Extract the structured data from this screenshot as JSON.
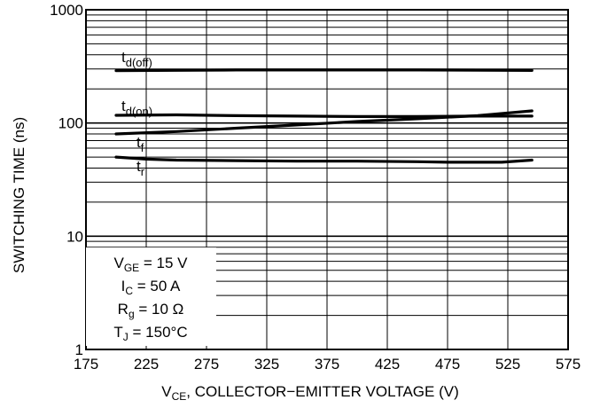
{
  "chart_data": {
    "type": "line",
    "xlabel": {
      "main": "V",
      "sub": "CE",
      "rest": ", COLLECTOR−EMITTER VOLTAGE (V)"
    },
    "ylabel": "SWITCHING TIME (ns)",
    "x_scale": "linear",
    "y_scale": "log",
    "xlim": [
      175,
      575
    ],
    "ylim": [
      1,
      1000
    ],
    "x_ticks": [
      "175",
      "225",
      "275",
      "325",
      "375",
      "425",
      "475",
      "525",
      "575"
    ],
    "y_ticks": [
      "1",
      "10",
      "100",
      "1000"
    ],
    "grid": true,
    "series": [
      {
        "label_main": "t",
        "label_sub": "d(off)",
        "x": [
          200,
          250,
          300,
          350,
          400,
          450,
          500,
          545
        ],
        "y": [
          290,
          292,
          294,
          294,
          294,
          294,
          293,
          291
        ]
      },
      {
        "label_main": "t",
        "label_sub": "d(on)",
        "x": [
          200,
          250,
          300,
          350,
          400,
          450,
          500,
          545
        ],
        "y": [
          117,
          118,
          116,
          115,
          114,
          114,
          115,
          115
        ]
      },
      {
        "label_main": "t",
        "label_sub": "f",
        "x": [
          200,
          250,
          300,
          350,
          400,
          450,
          500,
          545
        ],
        "y": [
          80,
          84,
          90,
          96,
          103,
          109,
          116,
          128
        ]
      },
      {
        "label_main": "t",
        "label_sub": "r",
        "x": [
          200,
          225,
          250,
          300,
          350,
          400,
          450,
          475,
          500,
          520,
          545
        ],
        "y": [
          50,
          48,
          47,
          46.5,
          46,
          46,
          45.5,
          45,
          45,
          45,
          47
        ]
      }
    ],
    "conditions": [
      {
        "main": "V",
        "sub": "GE",
        "rest": " = 15 V"
      },
      {
        "main": "I",
        "sub": "C",
        "rest": " = 50 A"
      },
      {
        "main": "R",
        "sub": "g",
        "rest": " = 10 Ω"
      },
      {
        "main": "T",
        "sub": "J",
        "rest": " = 150°C"
      }
    ]
  }
}
